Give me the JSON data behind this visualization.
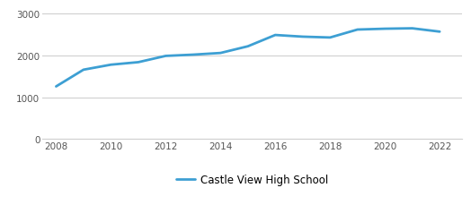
{
  "years": [
    2008,
    2009,
    2010,
    2011,
    2012,
    2013,
    2014,
    2015,
    2016,
    2017,
    2018,
    2019,
    2020,
    2021,
    2022
  ],
  "values": [
    1260,
    1660,
    1780,
    1840,
    1990,
    2020,
    2060,
    2220,
    2490,
    2450,
    2430,
    2620,
    2640,
    2650,
    2570
  ],
  "line_color": "#3d9fd3",
  "line_width": 2.0,
  "legend_label": "Castle View High School",
  "xlim": [
    2007.5,
    2022.8
  ],
  "ylim": [
    0,
    3200
  ],
  "yticks": [
    0,
    1000,
    2000,
    3000
  ],
  "xticks": [
    2008,
    2010,
    2012,
    2014,
    2016,
    2018,
    2020,
    2022
  ],
  "tick_fontsize": 7.5,
  "grid_color": "#d0d0d0",
  "background_color": "#ffffff",
  "legend_fontsize": 8.5
}
